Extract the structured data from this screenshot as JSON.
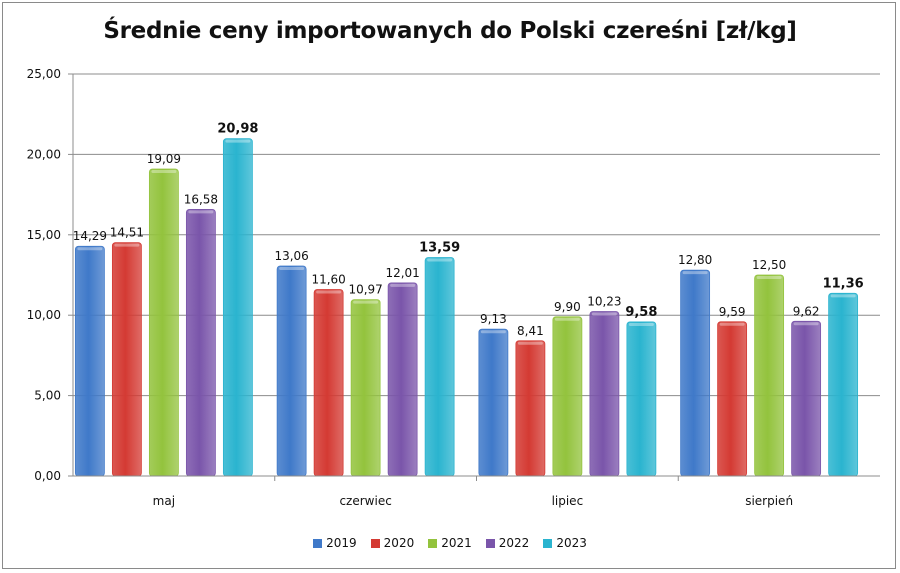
{
  "chart_data": {
    "type": "bar",
    "title": "Średnie ceny importowanych do Polski czereśni [zł/kg]",
    "categories": [
      "maj",
      "czerwiec",
      "lipiec",
      "sierpień"
    ],
    "series": [
      {
        "name": "2019",
        "color": "#3f79c9",
        "values": [
          14.29,
          13.06,
          9.13,
          12.8
        ],
        "labels": [
          "14,29",
          "13,06",
          "9,13",
          "12,80"
        ]
      },
      {
        "name": "2020",
        "color": "#d43a33",
        "values": [
          14.51,
          11.6,
          8.41,
          9.59
        ],
        "labels": [
          "14,51",
          "11,60",
          "8,41",
          "9,59"
        ]
      },
      {
        "name": "2021",
        "color": "#93c33d",
        "values": [
          19.09,
          10.97,
          9.9,
          12.5
        ],
        "labels": [
          "19,09",
          "10,97",
          "9,90",
          "12,50"
        ]
      },
      {
        "name": "2022",
        "color": "#7a55aa",
        "values": [
          16.58,
          12.01,
          10.23,
          9.62
        ],
        "labels": [
          "16,58",
          "12,01",
          "10,23",
          "9,62"
        ]
      },
      {
        "name": "2023",
        "color": "#2ab4cf",
        "values": [
          20.98,
          13.59,
          9.58,
          11.36
        ],
        "labels": [
          "20,98",
          "13,59",
          "9,58",
          "11,36"
        ],
        "bold_labels": true
      }
    ],
    "yticks": [
      "0,00",
      "5,00",
      "10,00",
      "15,00",
      "20,00",
      "25,00"
    ],
    "ylim": [
      0,
      25
    ],
    "grid": true,
    "legend": "bottom"
  }
}
